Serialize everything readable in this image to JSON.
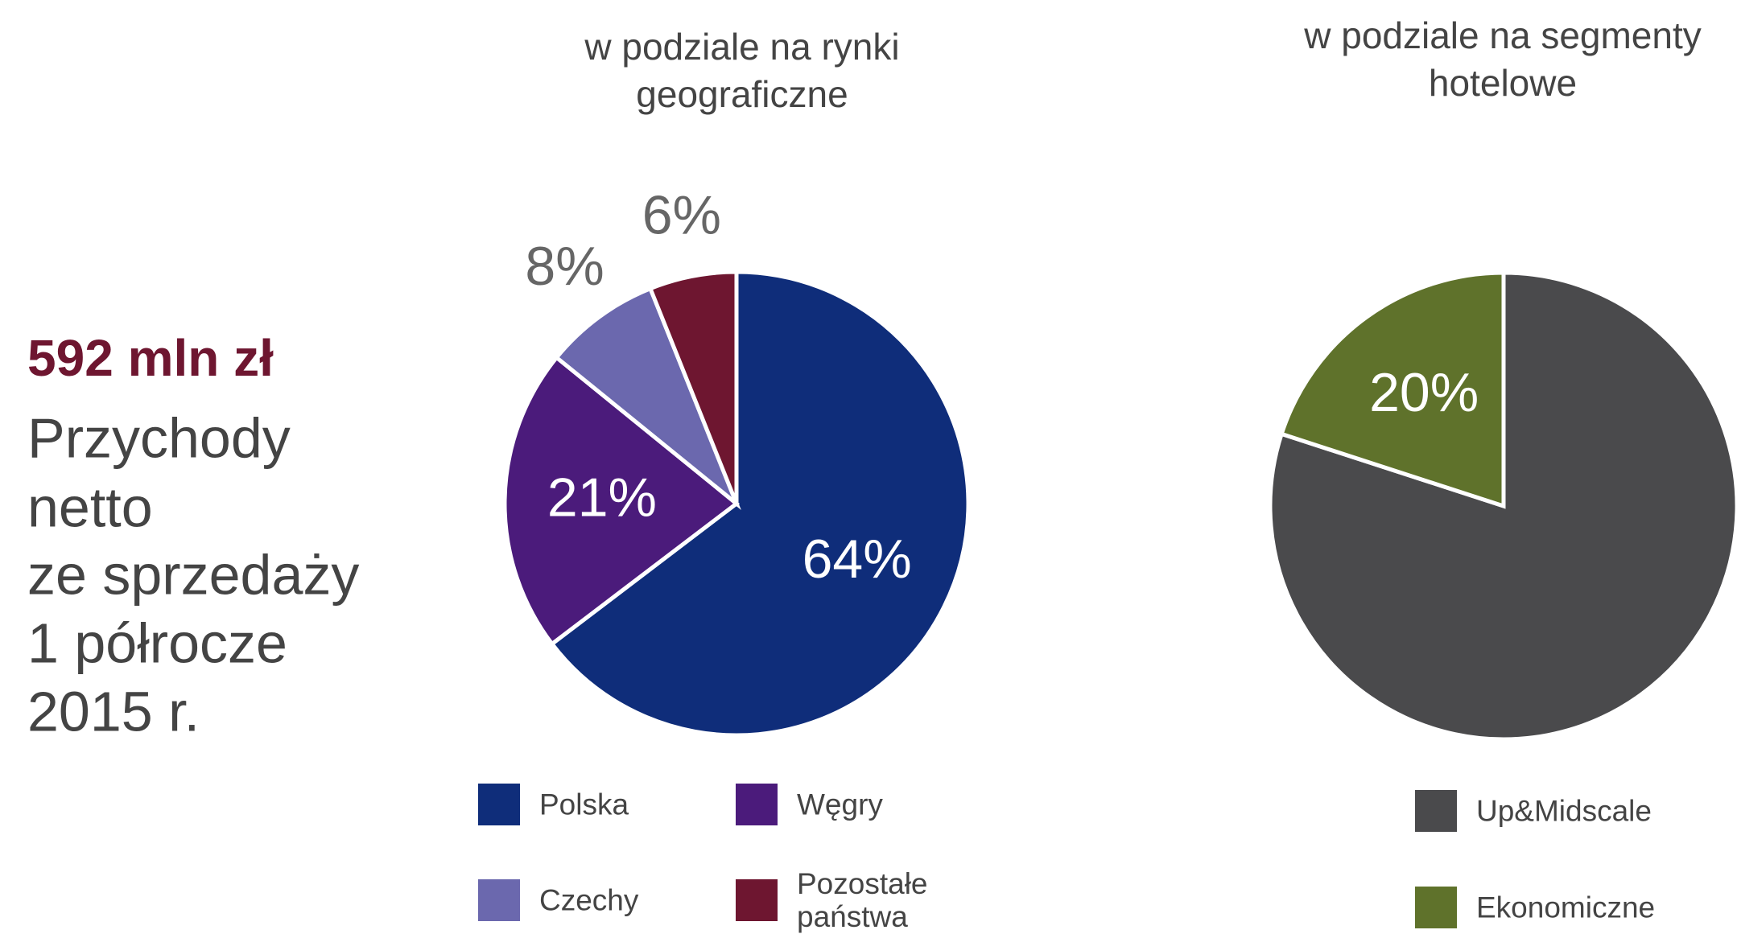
{
  "summary": {
    "amount": "592 mln zł",
    "lines": [
      "Przychody",
      "netto",
      "ze sprzedaży",
      "1 półrocze",
      "2015 r."
    ]
  },
  "chart_data": [
    {
      "type": "pie",
      "title": [
        "w podziale na rynki",
        "geograficzne"
      ],
      "categories": [
        "Polska",
        "Węgry",
        "Czechy",
        "Pozostałe państwa"
      ],
      "values": [
        64,
        21,
        8,
        6
      ],
      "value_labels": [
        "64%",
        "21%",
        "8%",
        "6%"
      ],
      "colors": [
        "#0f2d7a",
        "#4b1b7b",
        "#6b68ae",
        "#6e1630"
      ]
    },
    {
      "type": "pie",
      "title": [
        "w podziale na segmenty",
        "hotelowe"
      ],
      "categories": [
        "Up&Midscale",
        "Ekonomiczne"
      ],
      "values": [
        80,
        20
      ],
      "value_labels": [
        null,
        "20%"
      ],
      "colors": [
        "#4a4a4c",
        "#5f722b"
      ]
    }
  ]
}
